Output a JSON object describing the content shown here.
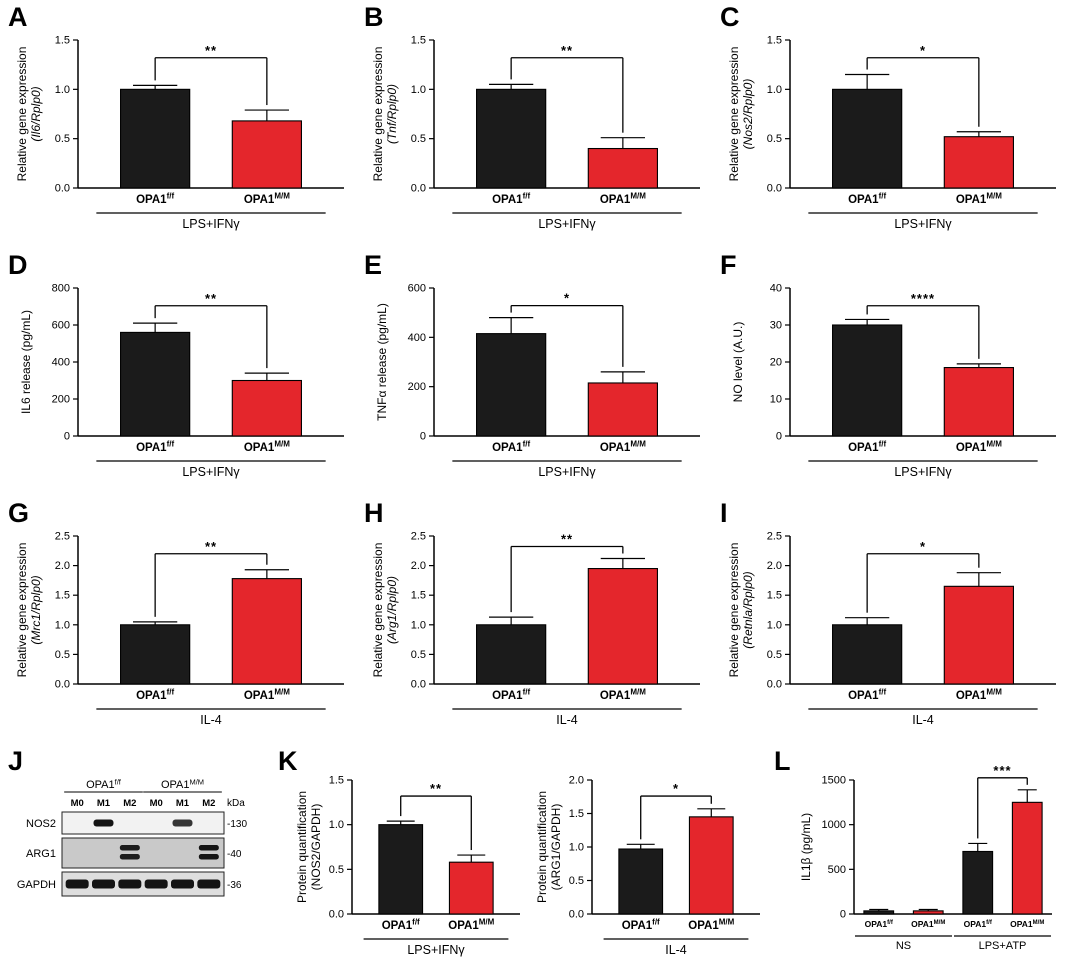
{
  "colors": {
    "black": "#1b1b1b",
    "red": "#e4262c"
  },
  "chart_data": [
    {
      "panel": "A",
      "type": "bar",
      "ylabel": [
        "Relative gene expression",
        "(Il6/Rplp0)"
      ],
      "italic2": true,
      "ymax": 1.5,
      "yticks": [
        "0.0",
        "0.5",
        "1.0",
        "1.5"
      ],
      "bars": [
        {
          "label": "OPA1",
          "sup": "f/f",
          "value": 1.0,
          "error": 0.04,
          "color": "black"
        },
        {
          "label": "OPA1",
          "sup": "M/M",
          "value": 0.68,
          "error": 0.11,
          "color": "red"
        }
      ],
      "sig": [
        {
          "from": 0,
          "to": 1,
          "text": "**"
        }
      ],
      "groups": [
        {
          "label": "LPS+IFNγ",
          "from": 0,
          "to": 1
        }
      ]
    },
    {
      "panel": "B",
      "type": "bar",
      "ylabel": [
        "Relative gene expression",
        "(Tnf/Rplp0)"
      ],
      "italic2": true,
      "ymax": 1.5,
      "yticks": [
        "0.0",
        "0.5",
        "1.0",
        "1.5"
      ],
      "bars": [
        {
          "label": "OPA1",
          "sup": "f/f",
          "value": 1.0,
          "error": 0.05,
          "color": "black"
        },
        {
          "label": "OPA1",
          "sup": "M/M",
          "value": 0.4,
          "error": 0.11,
          "color": "red"
        }
      ],
      "sig": [
        {
          "from": 0,
          "to": 1,
          "text": "**"
        }
      ],
      "groups": [
        {
          "label": "LPS+IFNγ",
          "from": 0,
          "to": 1
        }
      ]
    },
    {
      "panel": "C",
      "type": "bar",
      "ylabel": [
        "Relative gene expression",
        "(Nos2/Rplp0)"
      ],
      "italic2": true,
      "ymax": 1.5,
      "yticks": [
        "0.0",
        "0.5",
        "1.0",
        "1.5"
      ],
      "bars": [
        {
          "label": "OPA1",
          "sup": "f/f",
          "value": 1.0,
          "error": 0.15,
          "color": "black"
        },
        {
          "label": "OPA1",
          "sup": "M/M",
          "value": 0.52,
          "error": 0.05,
          "color": "red"
        }
      ],
      "sig": [
        {
          "from": 0,
          "to": 1,
          "text": "*"
        }
      ],
      "groups": [
        {
          "label": "LPS+IFNγ",
          "from": 0,
          "to": 1
        }
      ]
    },
    {
      "panel": "D",
      "type": "bar",
      "ylabel": [
        "IL6 release (pg/mL)"
      ],
      "ymax": 800,
      "yticks": [
        "0",
        "200",
        "400",
        "600",
        "800"
      ],
      "bars": [
        {
          "label": "OPA1",
          "sup": "f/f",
          "value": 560,
          "error": 50,
          "color": "black"
        },
        {
          "label": "OPA1",
          "sup": "M/M",
          "value": 300,
          "error": 40,
          "color": "red"
        }
      ],
      "sig": [
        {
          "from": 0,
          "to": 1,
          "text": "**"
        }
      ],
      "groups": [
        {
          "label": "LPS+IFNγ",
          "from": 0,
          "to": 1
        }
      ]
    },
    {
      "panel": "E",
      "type": "bar",
      "ylabel": [
        "TNFα release (pg/mL)"
      ],
      "ymax": 600,
      "yticks": [
        "0",
        "200",
        "400",
        "600"
      ],
      "bars": [
        {
          "label": "OPA1",
          "sup": "f/f",
          "value": 415,
          "error": 65,
          "color": "black"
        },
        {
          "label": "OPA1",
          "sup": "M/M",
          "value": 215,
          "error": 45,
          "color": "red"
        }
      ],
      "sig": [
        {
          "from": 0,
          "to": 1,
          "text": "*"
        }
      ],
      "groups": [
        {
          "label": "LPS+IFNγ",
          "from": 0,
          "to": 1
        }
      ]
    },
    {
      "panel": "F",
      "type": "bar",
      "ylabel": [
        "NO level (A.U.)"
      ],
      "ymax": 40,
      "yticks": [
        "0",
        "10",
        "20",
        "30",
        "40"
      ],
      "bars": [
        {
          "label": "OPA1",
          "sup": "f/f",
          "value": 30,
          "error": 1.5,
          "color": "black"
        },
        {
          "label": "OPA1",
          "sup": "M/M",
          "value": 18.5,
          "error": 1,
          "color": "red"
        }
      ],
      "sig": [
        {
          "from": 0,
          "to": 1,
          "text": "****"
        }
      ],
      "groups": [
        {
          "label": "LPS+IFNγ",
          "from": 0,
          "to": 1
        }
      ]
    },
    {
      "panel": "G",
      "type": "bar",
      "ylabel": [
        "Relative gene expression",
        "(Mrc1/Rplp0)"
      ],
      "italic2": true,
      "ymax": 2.5,
      "yticks": [
        "0.0",
        "0.5",
        "1.0",
        "1.5",
        "2.0",
        "2.5"
      ],
      "bars": [
        {
          "label": "OPA1",
          "sup": "f/f",
          "value": 1.0,
          "error": 0.05,
          "color": "black"
        },
        {
          "label": "OPA1",
          "sup": "M/M",
          "value": 1.78,
          "error": 0.15,
          "color": "red"
        }
      ],
      "sig": [
        {
          "from": 0,
          "to": 1,
          "text": "**"
        }
      ],
      "groups": [
        {
          "label": "IL-4",
          "from": 0,
          "to": 1
        }
      ]
    },
    {
      "panel": "H",
      "type": "bar",
      "ylabel": [
        "Relative gene expression",
        "(Arg1/Rplp0)"
      ],
      "italic2": true,
      "ymax": 2.5,
      "yticks": [
        "0.0",
        "0.5",
        "1.0",
        "1.5",
        "2.0",
        "2.5"
      ],
      "bars": [
        {
          "label": "OPA1",
          "sup": "f/f",
          "value": 1.0,
          "error": 0.13,
          "color": "black"
        },
        {
          "label": "OPA1",
          "sup": "M/M",
          "value": 1.95,
          "error": 0.17,
          "color": "red"
        }
      ],
      "sig": [
        {
          "from": 0,
          "to": 1,
          "text": "**"
        }
      ],
      "groups": [
        {
          "label": "IL-4",
          "from": 0,
          "to": 1
        }
      ]
    },
    {
      "panel": "I",
      "type": "bar",
      "ylabel": [
        "Relative gene expression",
        "(Retnla/Rplp0)"
      ],
      "italic2": true,
      "ymax": 2.5,
      "yticks": [
        "0.0",
        "0.5",
        "1.0",
        "1.5",
        "2.0",
        "2.5"
      ],
      "bars": [
        {
          "label": "OPA1",
          "sup": "f/f",
          "value": 1.0,
          "error": 0.12,
          "color": "black"
        },
        {
          "label": "OPA1",
          "sup": "M/M",
          "value": 1.65,
          "error": 0.23,
          "color": "red"
        }
      ],
      "sig": [
        {
          "from": 0,
          "to": 1,
          "text": "*"
        }
      ],
      "groups": [
        {
          "label": "IL-4",
          "from": 0,
          "to": 1
        }
      ]
    },
    {
      "panel": "K",
      "type": "bar",
      "ylabel": [
        "Protein quantification",
        "(NOS2/GAPDH)"
      ],
      "ymax": 1.5,
      "yticks": [
        "0.0",
        "0.5",
        "1.0",
        "1.5"
      ],
      "bars": [
        {
          "label": "OPA1",
          "sup": "f/f",
          "value": 1.0,
          "error": 0.04,
          "color": "black"
        },
        {
          "label": "OPA1",
          "sup": "M/M",
          "value": 0.58,
          "error": 0.08,
          "color": "red"
        }
      ],
      "sig": [
        {
          "from": 0,
          "to": 1,
          "text": "**"
        }
      ],
      "groups": [
        {
          "label": "LPS+IFNγ",
          "from": 0,
          "to": 1
        }
      ]
    },
    {
      "panel": "",
      "type": "bar",
      "ylabel": [
        "Protein quantification",
        "(ARG1/GAPDH)"
      ],
      "ymax": 2.0,
      "yticks": [
        "0.0",
        "0.5",
        "1.0",
        "1.5",
        "2.0"
      ],
      "bars": [
        {
          "label": "OPA1",
          "sup": "f/f",
          "value": 0.97,
          "error": 0.07,
          "color": "black"
        },
        {
          "label": "OPA1",
          "sup": "M/M",
          "value": 1.45,
          "error": 0.12,
          "color": "red"
        }
      ],
      "sig": [
        {
          "from": 0,
          "to": 1,
          "text": "*"
        }
      ],
      "groups": [
        {
          "label": "IL-4",
          "from": 0,
          "to": 1
        }
      ]
    },
    {
      "panel": "L",
      "type": "bar",
      "ylabel": [
        "IL1β (pg/mL)"
      ],
      "ymax": 1500,
      "yticks": [
        "0",
        "500",
        "1000",
        "1500"
      ],
      "bars": [
        {
          "label": "OPA1",
          "sup": "f/f",
          "value": 35,
          "error": 15,
          "color": "black"
        },
        {
          "label": "OPA1",
          "sup": "M/M",
          "value": 35,
          "error": 15,
          "color": "red"
        },
        {
          "label": "OPA1",
          "sup": "f/f",
          "value": 700,
          "error": 90,
          "color": "black"
        },
        {
          "label": "OPA1",
          "sup": "M/M",
          "value": 1250,
          "error": 140,
          "color": "red"
        }
      ],
      "sig": [
        {
          "from": 2,
          "to": 3,
          "text": "***"
        }
      ],
      "groups": [
        {
          "label": "NS",
          "from": 0,
          "to": 1
        },
        {
          "label": "LPS+ATP",
          "from": 2,
          "to": 3
        }
      ]
    }
  ],
  "blot": {
    "panel": "J",
    "groups": [
      {
        "label": "OPA1",
        "sup": "f/f"
      },
      {
        "label": "OPA1",
        "sup": "M/M"
      }
    ],
    "lanes": [
      "M0",
      "M1",
      "M2",
      "M0",
      "M1",
      "M2"
    ],
    "kda_header": "kDa",
    "rows": [
      {
        "protein": "NOS2",
        "kda": "-130",
        "bands": [
          0,
          1,
          0,
          0,
          0.85,
          0
        ],
        "double": false,
        "bg": "#f2f2f2"
      },
      {
        "protein": "ARG1",
        "kda": "-40",
        "bands": [
          0,
          0,
          0.95,
          0,
          0,
          1
        ],
        "double": true,
        "bg": "#c9c9c9"
      },
      {
        "protein": "GAPDH",
        "kda": "-36",
        "bands": [
          1,
          1,
          1,
          1,
          1,
          1
        ],
        "double": false,
        "bg": "#dedede"
      }
    ]
  }
}
